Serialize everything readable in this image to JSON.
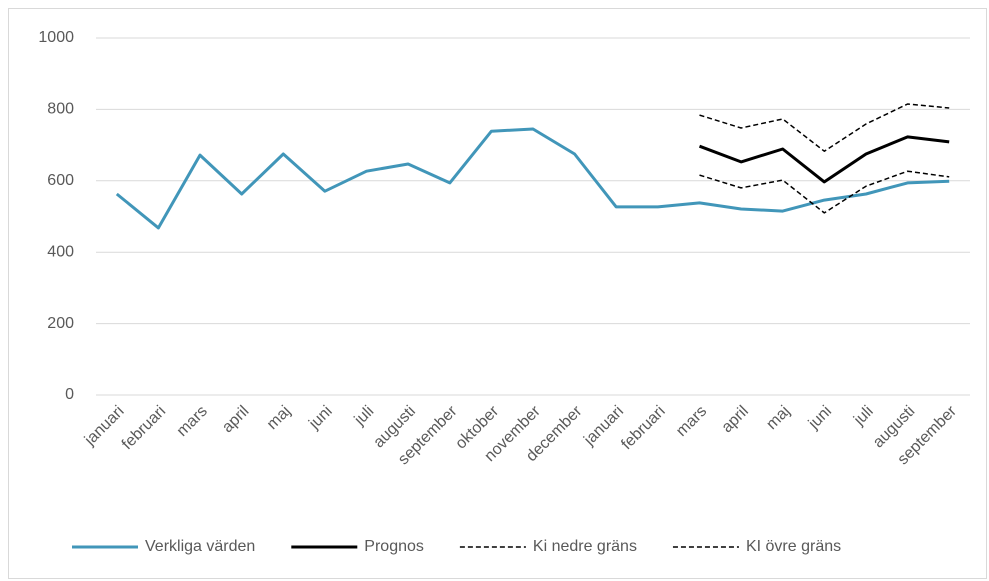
{
  "chart_data": {
    "type": "line",
    "categories": [
      "januari",
      "februari",
      "mars",
      "april",
      "maj",
      "juni",
      "juli",
      "augusti",
      "september",
      "oktober",
      "november",
      "december",
      "januari",
      "februari",
      "mars",
      "april",
      "maj",
      "juni",
      "juli",
      "augusti",
      "september"
    ],
    "series": [
      {
        "name": "Verkliga värden",
        "color": "#4196b9",
        "style": "solid",
        "values": [
          563,
          468,
          672,
          563,
          675,
          571,
          627,
          647,
          594,
          739,
          745,
          675,
          527,
          527,
          538,
          521,
          515,
          546,
          563,
          594,
          599
        ]
      },
      {
        "name": "Prognos",
        "color": "#000000",
        "style": "solid",
        "values": [
          null,
          null,
          null,
          null,
          null,
          null,
          null,
          null,
          null,
          null,
          null,
          null,
          null,
          null,
          697,
          653,
          689,
          597,
          675,
          723,
          709
        ]
      },
      {
        "name": "Ki nedre gräns",
        "color": "#000000",
        "style": "dashed",
        "values": [
          null,
          null,
          null,
          null,
          null,
          null,
          null,
          null,
          null,
          null,
          null,
          null,
          null,
          null,
          616,
          580,
          602,
          510,
          585,
          627,
          611
        ]
      },
      {
        "name": "KI övre gräns",
        "color": "#000000",
        "style": "dashed",
        "values": [
          null,
          null,
          null,
          null,
          null,
          null,
          null,
          null,
          null,
          null,
          null,
          null,
          null,
          null,
          784,
          748,
          773,
          683,
          759,
          815,
          804
        ]
      }
    ],
    "ylim": [
      0,
      1000
    ],
    "yticks": [
      0,
      200,
      400,
      600,
      800,
      1000
    ],
    "grid": true,
    "legend": "bottom"
  }
}
